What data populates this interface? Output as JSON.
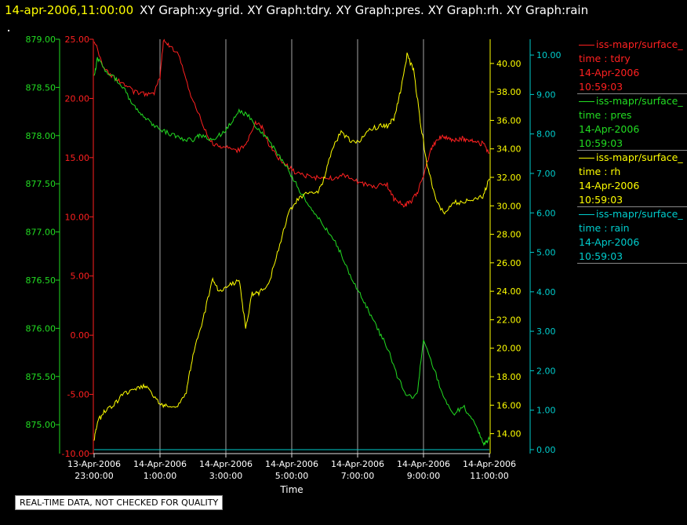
{
  "header": {
    "time": "14-apr-2006,11:00:00",
    "graphs": "XY Graph:xy-grid.  XY Graph:tdry.  XY Graph:pres.  XY Graph:rh.  XY Graph:rain"
  },
  "footer_note": "REAL-TIME DATA, NOT CHECKED FOR QUALITY",
  "legend": [
    {
      "source": "iss-mapr/surface_",
      "field": "time : tdry",
      "date": "14-Apr-2006",
      "time": "10:59:03",
      "color": "#ff2020"
    },
    {
      "source": "iss-mapr/surface_",
      "field": "time : pres",
      "date": "14-Apr-2006",
      "time": "10:59:03",
      "color": "#22dd22"
    },
    {
      "source": "iss-mapr/surface_",
      "field": "time : rh",
      "date": "14-Apr-2006",
      "time": "10:59:03",
      "color": "#ffff00"
    },
    {
      "source": "iss-mapr/surface_",
      "field": "time : rain",
      "date": "14-Apr-2006",
      "time": "10:59:03",
      "color": "#00cccc"
    }
  ],
  "chart_data": {
    "type": "line",
    "xlabel": "Time",
    "x_ticks": [
      {
        "date": "13-Apr-2006",
        "time": "23:00:00"
      },
      {
        "date": "14-Apr-2006",
        "time": "1:00:00"
      },
      {
        "date": "14-Apr-2006",
        "time": "3:00:00"
      },
      {
        "date": "14-Apr-2006",
        "time": "5:00:00"
      },
      {
        "date": "14-Apr-2006",
        "time": "7:00:00"
      },
      {
        "date": "14-Apr-2006",
        "time": "9:00:00"
      },
      {
        "date": "14-Apr-2006",
        "time": "11:00:00"
      }
    ],
    "x_range_hours": [
      23,
      35
    ],
    "grid": "vertical",
    "axes": {
      "pres": {
        "color": "#22dd22",
        "ylim": [
          874.7,
          879.0
        ],
        "ticks": [
          "875.00",
          "875.50",
          "876.00",
          "876.50",
          "877.00",
          "877.50",
          "878.00",
          "878.50",
          "879.00"
        ]
      },
      "tdry": {
        "color": "#ff2020",
        "ylim": [
          -10,
          25
        ],
        "ticks": [
          "-10.00",
          "-5.00",
          "0.00",
          "5.00",
          "10.00",
          "15.00",
          "20.00",
          "25.00"
        ]
      },
      "rh": {
        "color": "#ffff00",
        "ylim": [
          12.6,
          41.7
        ],
        "ticks": [
          "14.00",
          "16.00",
          "18.00",
          "20.00",
          "22.00",
          "24.00",
          "26.00",
          "28.00",
          "30.00",
          "32.00",
          "34.00",
          "36.00",
          "38.00",
          "40.00"
        ]
      },
      "rain": {
        "color": "#00cccc",
        "ylim": [
          -0.1,
          10.4
        ],
        "ticks": [
          "0.00",
          "1.00",
          "2.00",
          "3.00",
          "4.00",
          "5.00",
          "6.00",
          "7.00",
          "8.00",
          "9.00",
          "10.00"
        ]
      }
    },
    "series": [
      {
        "name": "tdry",
        "axis": "tdry",
        "color": "#ff2020",
        "x": [
          23.0,
          23.3,
          23.6,
          23.9,
          24.2,
          24.5,
          24.8,
          25.0,
          25.1,
          25.3,
          25.6,
          25.9,
          26.2,
          26.5,
          26.8,
          27.0,
          27.3,
          27.6,
          27.9,
          28.1,
          28.3,
          28.6,
          28.9,
          29.2,
          29.5,
          29.8,
          30.1,
          30.4,
          30.7,
          31.0,
          31.3,
          31.6,
          31.9,
          32.1,
          32.4,
          32.6,
          32.8,
          33.0,
          33.2,
          33.4,
          33.6,
          33.8,
          34.0,
          34.2,
          34.4,
          34.6,
          34.8,
          35.0
        ],
        "y": [
          25.0,
          22.5,
          21.8,
          21.2,
          20.6,
          20.4,
          20.3,
          21.8,
          24.8,
          24.5,
          23.5,
          20.5,
          18.5,
          16.5,
          15.8,
          15.9,
          15.5,
          16.0,
          18.0,
          17.5,
          16.2,
          15.0,
          14.2,
          13.6,
          13.4,
          13.3,
          13.2,
          13.4,
          13.5,
          13.0,
          12.6,
          12.6,
          12.7,
          11.5,
          11.0,
          11.2,
          12.0,
          13.5,
          15.5,
          16.5,
          16.8,
          16.6,
          16.5,
          16.6,
          16.5,
          16.2,
          16.2,
          15.4
        ]
      },
      {
        "name": "pres",
        "axis": "pres",
        "color": "#22dd22",
        "x": [
          23.0,
          23.1,
          23.3,
          23.6,
          23.9,
          24.2,
          24.5,
          24.8,
          25.1,
          25.4,
          25.7,
          26.0,
          26.2,
          26.5,
          26.8,
          27.1,
          27.4,
          27.7,
          28.0,
          28.3,
          28.6,
          28.9,
          29.2,
          29.5,
          29.8,
          30.1,
          30.4,
          30.7,
          31.0,
          31.3,
          31.6,
          31.9,
          32.2,
          32.5,
          32.8,
          33.0,
          33.3,
          33.6,
          33.9,
          34.2,
          34.5,
          34.7,
          34.85,
          35.0
        ],
        "y": [
          878.6,
          878.8,
          878.7,
          878.6,
          878.5,
          878.3,
          878.2,
          878.1,
          878.05,
          878.0,
          877.96,
          877.96,
          878.0,
          877.96,
          878.0,
          878.1,
          878.25,
          878.2,
          878.05,
          877.95,
          877.8,
          877.65,
          877.45,
          877.3,
          877.15,
          877.0,
          876.85,
          876.6,
          876.4,
          876.2,
          876.0,
          875.8,
          875.5,
          875.3,
          875.3,
          875.9,
          875.6,
          875.3,
          875.1,
          875.2,
          875.05,
          874.9,
          874.8,
          874.85
        ]
      },
      {
        "name": "rh",
        "axis": "rh",
        "color": "#ffff00",
        "x": [
          23.0,
          23.1,
          23.3,
          23.6,
          23.9,
          24.2,
          24.5,
          24.7,
          25.0,
          25.2,
          25.5,
          25.8,
          26.0,
          26.3,
          26.6,
          26.8,
          27.1,
          27.4,
          27.6,
          27.8,
          28.0,
          28.3,
          28.6,
          28.9,
          29.2,
          29.5,
          29.8,
          30.0,
          30.2,
          30.5,
          30.8,
          31.1,
          31.4,
          31.7,
          31.9,
          32.1,
          32.3,
          32.5,
          32.7,
          32.9,
          33.1,
          33.3,
          33.6,
          33.9,
          34.2,
          34.5,
          34.8,
          35.0
        ],
        "y": [
          13.5,
          14.8,
          15.5,
          16.0,
          16.8,
          17.0,
          17.4,
          17.0,
          16.0,
          15.9,
          15.9,
          17.0,
          19.5,
          22.0,
          24.8,
          23.9,
          24.4,
          24.8,
          21.5,
          23.8,
          23.9,
          24.5,
          27.0,
          29.5,
          30.5,
          31.0,
          31.0,
          32.0,
          33.8,
          35.2,
          34.5,
          34.6,
          35.4,
          35.6,
          35.6,
          36.1,
          38.0,
          40.6,
          39.5,
          36.0,
          33.0,
          31.0,
          29.5,
          30.2,
          30.3,
          30.5,
          30.7,
          31.9
        ]
      },
      {
        "name": "rain",
        "axis": "rain",
        "color": "#00cccc",
        "x": [
          23.0,
          35.0
        ],
        "y": [
          0.0,
          0.0
        ]
      }
    ]
  }
}
